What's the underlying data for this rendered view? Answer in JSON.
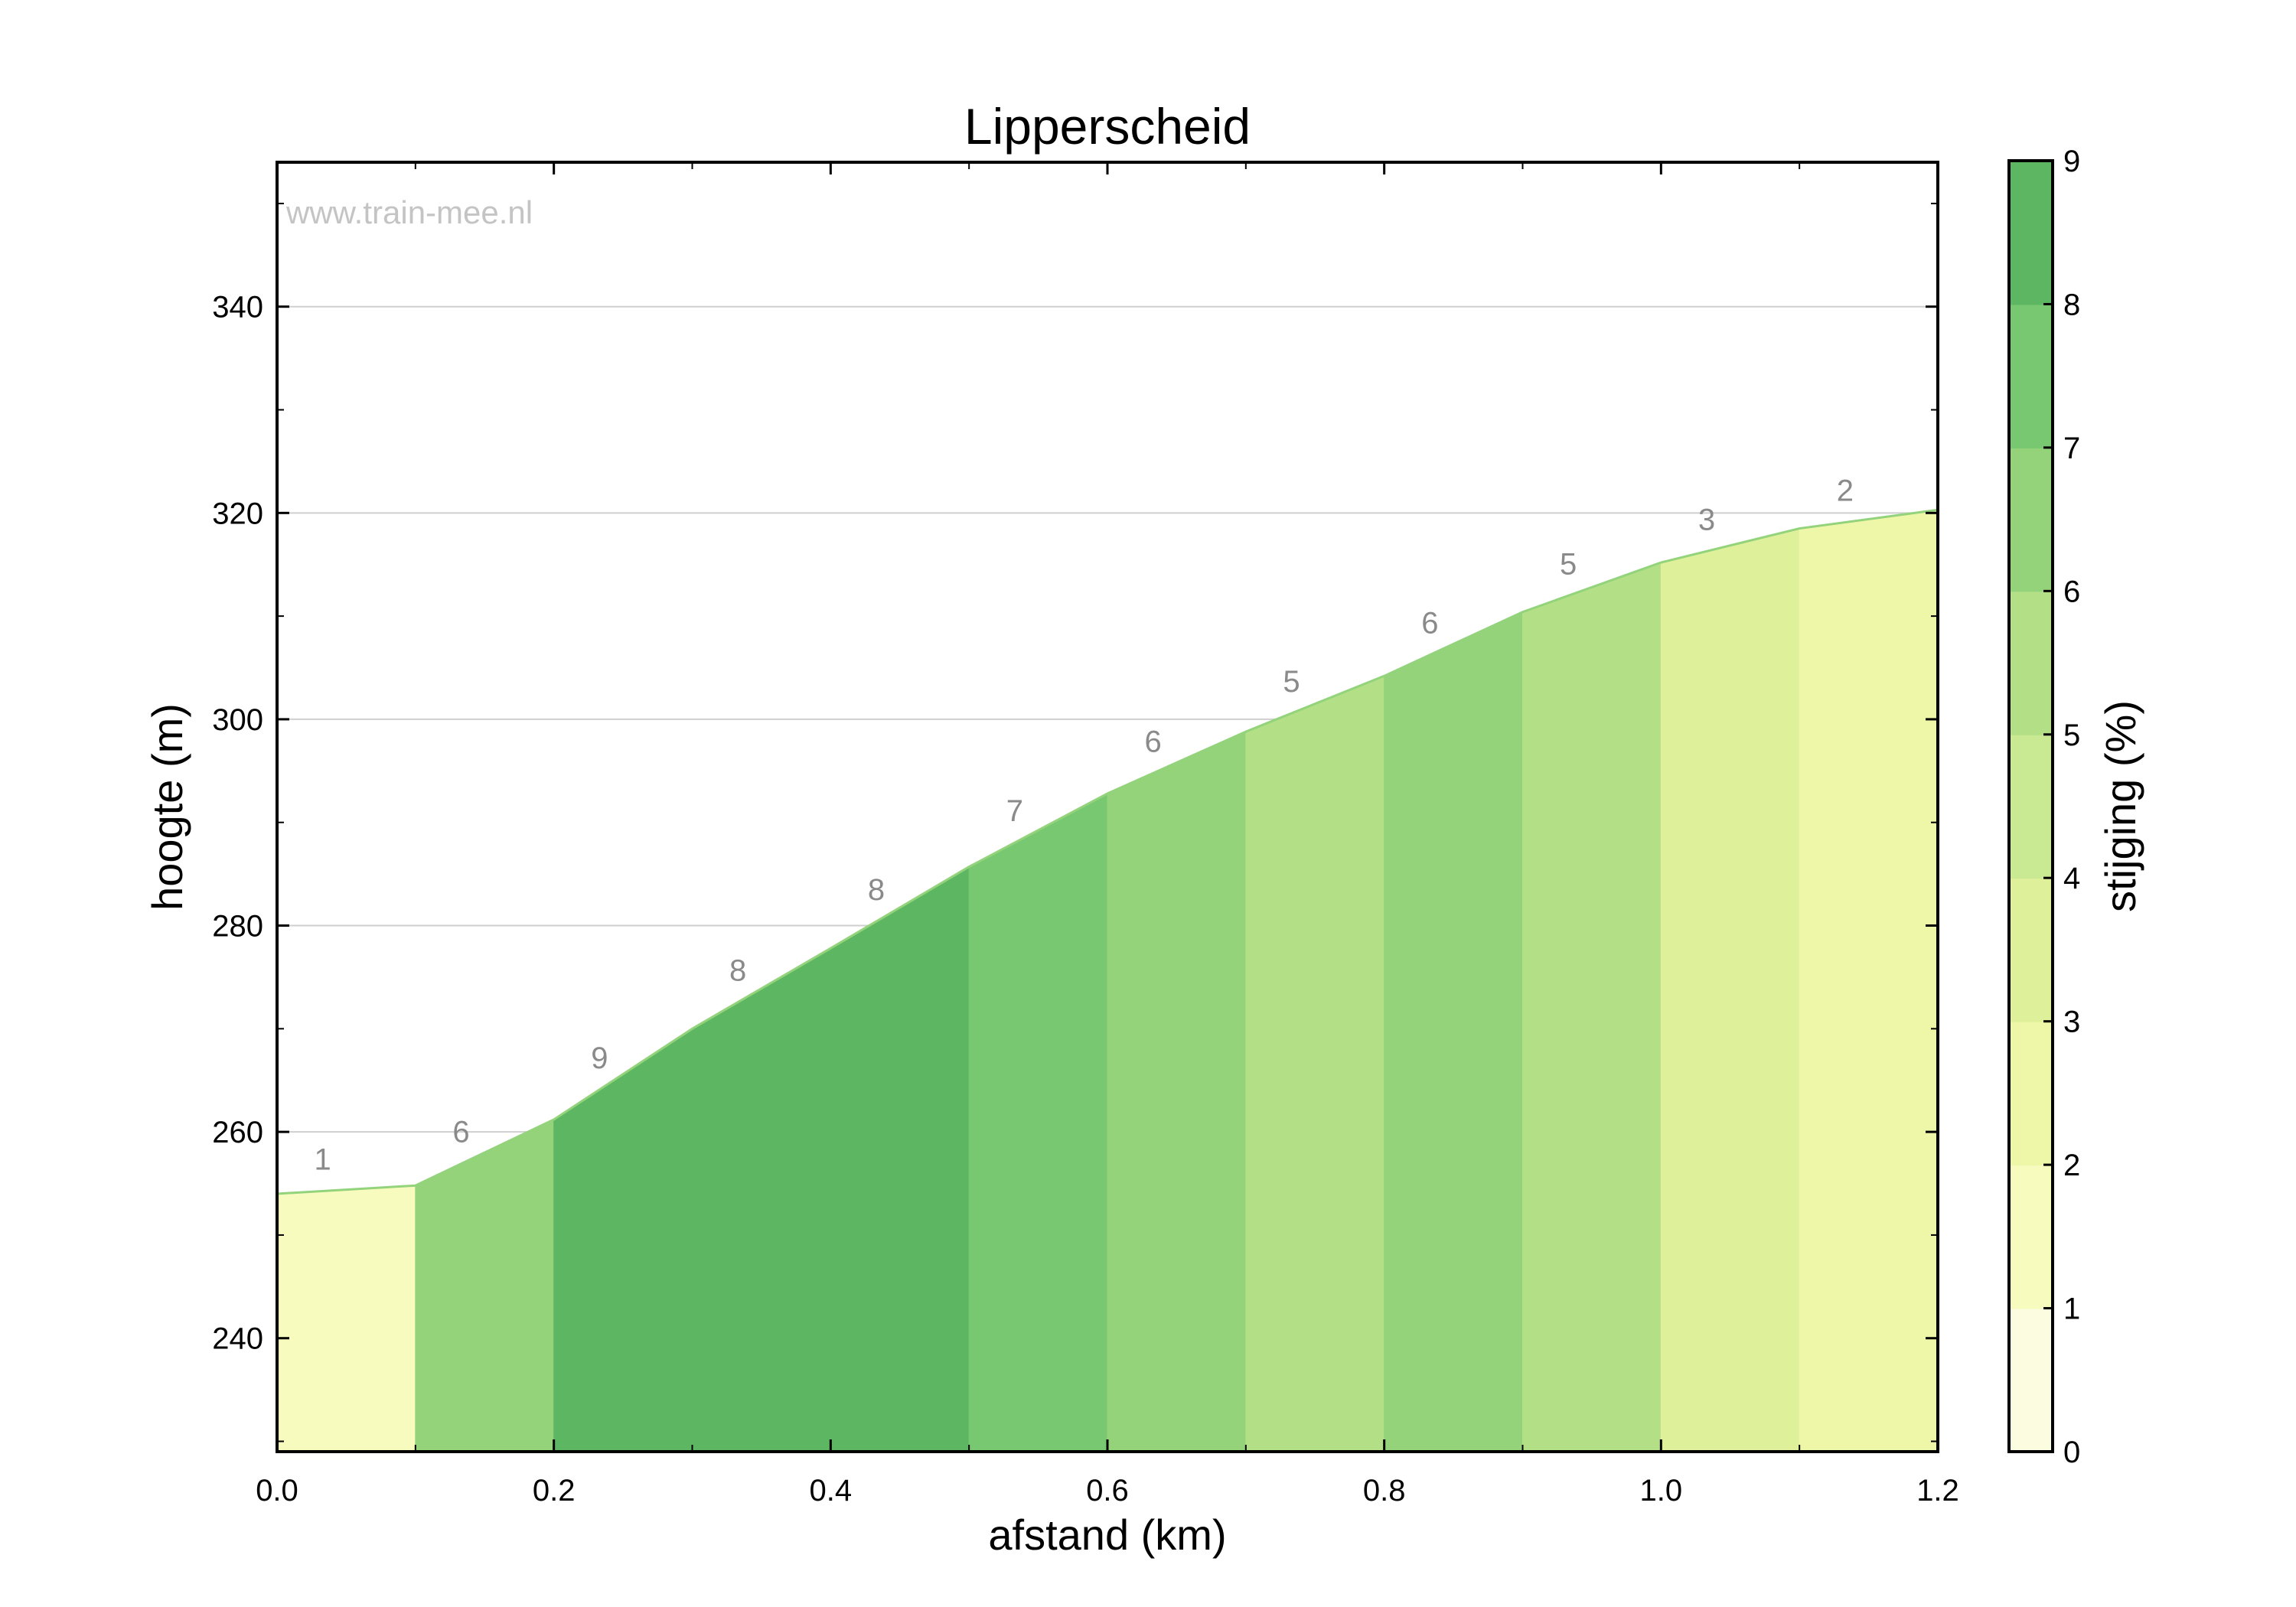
{
  "chart_data": {
    "type": "area",
    "title": "Lipperscheid",
    "watermark": "www.train-mee.nl",
    "xlabel": "afstand (km)",
    "ylabel": "hoogte (m)",
    "xlim": [
      0.0,
      1.2
    ],
    "ylim": [
      229,
      354
    ],
    "x_ticks": [
      "0.0",
      "0.2",
      "0.4",
      "0.6",
      "0.8",
      "1.0",
      "1.2"
    ],
    "y_ticks": [
      "240",
      "260",
      "280",
      "300",
      "320",
      "340"
    ],
    "grid": "horizontal",
    "x": [
      0.0,
      0.1,
      0.2,
      0.3,
      0.4,
      0.5,
      0.6,
      0.7,
      0.8,
      0.9,
      1.0,
      1.1,
      1.2
    ],
    "elevation": [
      254.0,
      254.8,
      261.2,
      270.0,
      277.8,
      285.7,
      292.8,
      298.8,
      304.2,
      310.4,
      315.2,
      318.5,
      320.3
    ],
    "segments": [
      {
        "grade_label": "1",
        "grade": 1
      },
      {
        "grade_label": "6",
        "grade": 6
      },
      {
        "grade_label": "9",
        "grade": 9
      },
      {
        "grade_label": "8",
        "grade": 8
      },
      {
        "grade_label": "8",
        "grade": 8
      },
      {
        "grade_label": "7",
        "grade": 7
      },
      {
        "grade_label": "6",
        "grade": 6
      },
      {
        "grade_label": "5",
        "grade": 5
      },
      {
        "grade_label": "6",
        "grade": 6
      },
      {
        "grade_label": "5",
        "grade": 5
      },
      {
        "grade_label": "3",
        "grade": 3
      },
      {
        "grade_label": "2",
        "grade": 2
      }
    ],
    "colorbar": {
      "label": "stijging (%)",
      "ticks": [
        "0",
        "1",
        "2",
        "3",
        "4",
        "5",
        "6",
        "7",
        "8",
        "9"
      ],
      "range": [
        0,
        9
      ],
      "colors": [
        "#fcfce0",
        "#f7fbbe",
        "#eef6a8",
        "#dff09b",
        "#cae993",
        "#b3e087",
        "#95d37b",
        "#77c871",
        "#5db662"
      ]
    },
    "line_color": "#93d37b"
  }
}
